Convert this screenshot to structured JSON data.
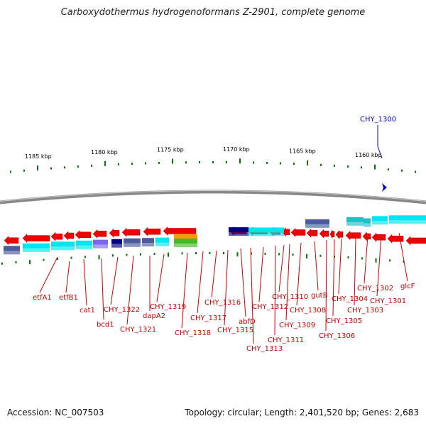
{
  "title": "Carboxydothermus hydrogenoformans Z-2901, complete genome",
  "accession": "Accession: NC_007503",
  "summary": "Topology: circular; Length: 2,401,520 bp; Genes: 2,683",
  "colors": {
    "arrow": "#ee0000",
    "label": "#cc0000",
    "highlight": "#0000cc",
    "tick": "#007700",
    "backbone": "#888888",
    "cyan": "#00e5ee",
    "navy": "#000080",
    "violet": "#7b68ee",
    "slate": "#4a5a9a",
    "teal": "#20c0c8",
    "orange": "#ff9900",
    "green": "#44bb22"
  },
  "scale": [
    "1185 kbp",
    "1180 kbp",
    "1175 kbp",
    "1170 kbp",
    "1165 kbp",
    "1160 kbp"
  ],
  "highlight_gene": "CHY_1300",
  "genes": [
    "etfA1",
    "etfB1",
    "cat1",
    "bcd1",
    "CHY_1322",
    "CHY_1321",
    "dapA2",
    "CHY_1319",
    "CHY_1318",
    "CHY_1317",
    "CHY_1316",
    "CHY_1315",
    "abfD",
    "CHY_1313",
    "CHY_1312",
    "CHY_1311",
    "CHY_1310",
    "CHY_1309",
    "CHY_1308",
    "gutB",
    "CHY_1306",
    "CHY_1305",
    "CHY_1304",
    "CHY_1303",
    "CHY_1302",
    "CHY_1301",
    "glcF"
  ]
}
